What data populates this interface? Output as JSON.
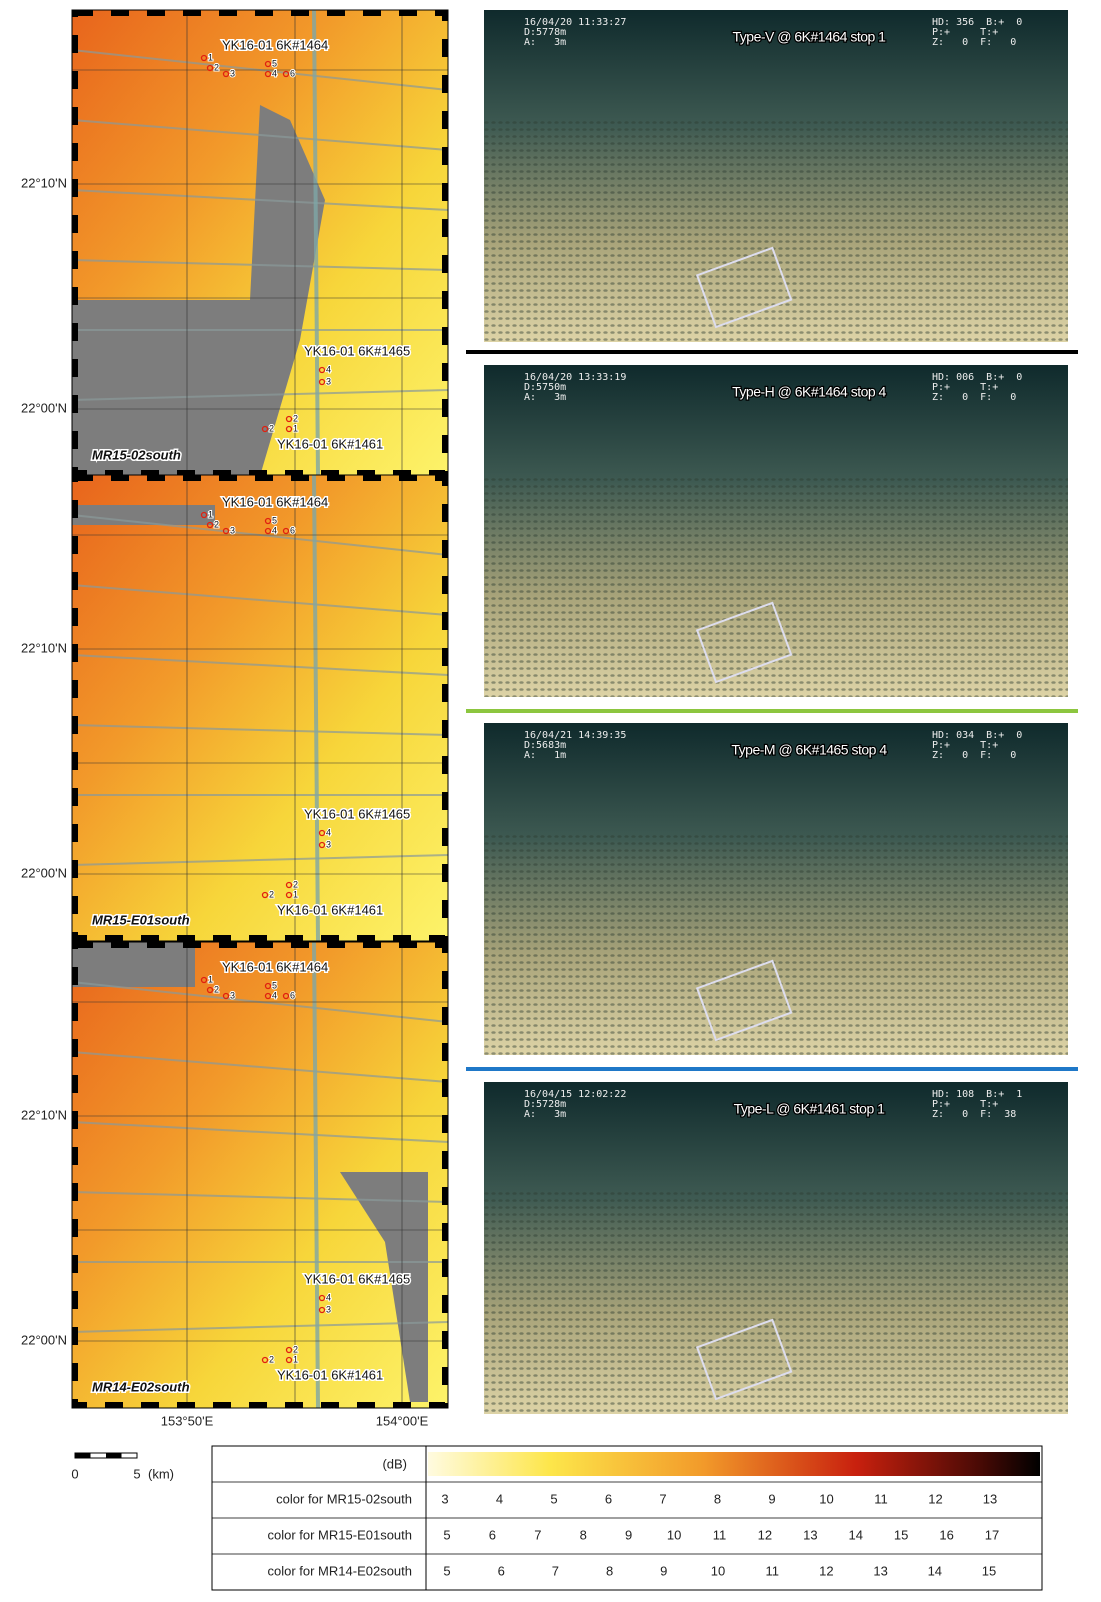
{
  "maps": [
    {
      "name": "MR15-02south",
      "lat_labels": [
        "22°10'N",
        "22°00'N"
      ],
      "sites": [
        {
          "label": "YK16-01 6K#1464",
          "stops": [
            "1",
            "2",
            "3",
            "5",
            "4",
            "6"
          ]
        },
        {
          "label": "YK16-01 6K#1465",
          "stops": [
            "4",
            "3"
          ]
        },
        {
          "label": "YK16-01 6K#1461",
          "stops": [
            "2",
            "2",
            "1"
          ]
        }
      ]
    },
    {
      "name": "MR15-E01south",
      "lat_labels": [
        "22°10'N",
        "22°00'N"
      ],
      "sites": [
        {
          "label": "YK16-01 6K#1464",
          "stops": [
            "1",
            "2",
            "3",
            "5",
            "4",
            "6"
          ]
        },
        {
          "label": "YK16-01 6K#1465",
          "stops": [
            "4",
            "3"
          ]
        },
        {
          "label": "YK16-01 6K#1461",
          "stops": [
            "2",
            "2",
            "1"
          ]
        }
      ]
    },
    {
      "name": "MR14-E02south",
      "lat_labels": [
        "22°10'N",
        "22°00'N"
      ],
      "sites": [
        {
          "label": "YK16-01 6K#1464",
          "stops": [
            "1",
            "2",
            "3",
            "5",
            "4",
            "6"
          ]
        },
        {
          "label": "YK16-01 6K#1465",
          "stops": [
            "4",
            "3"
          ]
        },
        {
          "label": "YK16-01 6K#1461",
          "stops": [
            "2",
            "2",
            "1"
          ]
        }
      ]
    }
  ],
  "lon_labels": [
    "153°50'E",
    "154°00'E"
  ],
  "photos": [
    {
      "timestamp": "16/04/20 11:33:27",
      "depth": "D:5778m",
      "altitude": "A:   3m",
      "caption": "Type-V @ 6K#1464  stop 1",
      "hud": [
        "HD: 356  B:+  0",
        "P:+     T:+",
        "Z:   0  F:   0"
      ]
    },
    {
      "timestamp": "16/04/20 13:33:19",
      "depth": "D:5750m",
      "altitude": "A:   3m",
      "caption": "Type-H @ 6K#1464  stop 4",
      "hud": [
        "HD: 006  B:+  0",
        "P:+     T:+",
        "Z:   0  F:   0"
      ]
    },
    {
      "timestamp": "16/04/21 14:39:35",
      "depth": "D:5683m",
      "altitude": "A:   1m",
      "caption": "Type-M @ 6K#1465  stop 4",
      "hud": [
        "HD: 034  B:+  0",
        "P:+     T:+",
        "Z:   0  F:   0"
      ]
    },
    {
      "timestamp": "16/04/15 12:02:22",
      "depth": "D:5728m",
      "altitude": "A:   3m",
      "caption": "Type-L @ 6K#1461  stop 1",
      "hud": [
        "HD: 108  B:+  1",
        "P:+     T:+",
        "Z:   0  F:  38"
      ]
    }
  ],
  "scale_bar": {
    "ticks": [
      "0",
      "5"
    ],
    "unit": "(km)"
  },
  "color_legend": {
    "unit": "(dB)",
    "rows": [
      {
        "label": "color for MR15-02south",
        "ticks": [
          3,
          4,
          5,
          6,
          7,
          8,
          9,
          10,
          11,
          12,
          13
        ]
      },
      {
        "label": "color for MR15-E01south",
        "ticks": [
          5,
          6,
          7,
          8,
          9,
          10,
          11,
          12,
          13,
          14,
          15,
          16,
          17
        ]
      },
      {
        "label": "color for MR14-E02south",
        "ticks": [
          5,
          6,
          7,
          8,
          9,
          10,
          11,
          12,
          13,
          14,
          15
        ]
      }
    ]
  }
}
